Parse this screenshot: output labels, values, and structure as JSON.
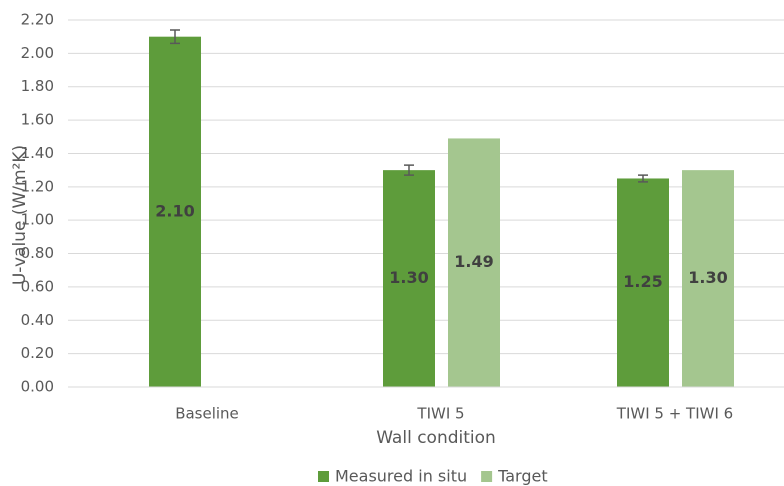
{
  "chart_data": {
    "type": "bar",
    "x_label": "Wall condition",
    "y_label": "U-value (W/m²K)",
    "categories": [
      "Baseline",
      "TIWI 5",
      "TIWI 5 + TIWI 6"
    ],
    "series": [
      {
        "name": "Measured in situ",
        "color": "#5e9c3b",
        "values": [
          2.1,
          1.3,
          1.25
        ],
        "value_labels": [
          "2.10",
          "1.30",
          "1.25"
        ],
        "errors": [
          0.04,
          0.03,
          0.02
        ]
      },
      {
        "name": "Target",
        "color": "#a4c68f",
        "values": [
          null,
          1.49,
          1.3
        ],
        "value_labels": [
          null,
          "1.49",
          "1.30"
        ]
      }
    ],
    "ylim": [
      0,
      2.2
    ],
    "yticks": [
      {
        "value": 0,
        "label": "0.00"
      },
      {
        "value": 0.2,
        "label": "0.20"
      },
      {
        "value": 0.4,
        "label": "0.40"
      },
      {
        "value": 0.6,
        "label": "0.60"
      },
      {
        "value": 0.8,
        "label": "0.80"
      },
      {
        "value": 1.0,
        "label": "1.00"
      },
      {
        "value": 1.2,
        "label": "1.20"
      },
      {
        "value": 1.4,
        "label": "1.40"
      },
      {
        "value": 1.6,
        "label": "1.60"
      },
      {
        "value": 1.8,
        "label": "1.80"
      },
      {
        "value": 2.0,
        "label": "2.00"
      },
      {
        "value": 2.2,
        "label": "2.20"
      }
    ],
    "grid": true,
    "legend": "bottom"
  }
}
